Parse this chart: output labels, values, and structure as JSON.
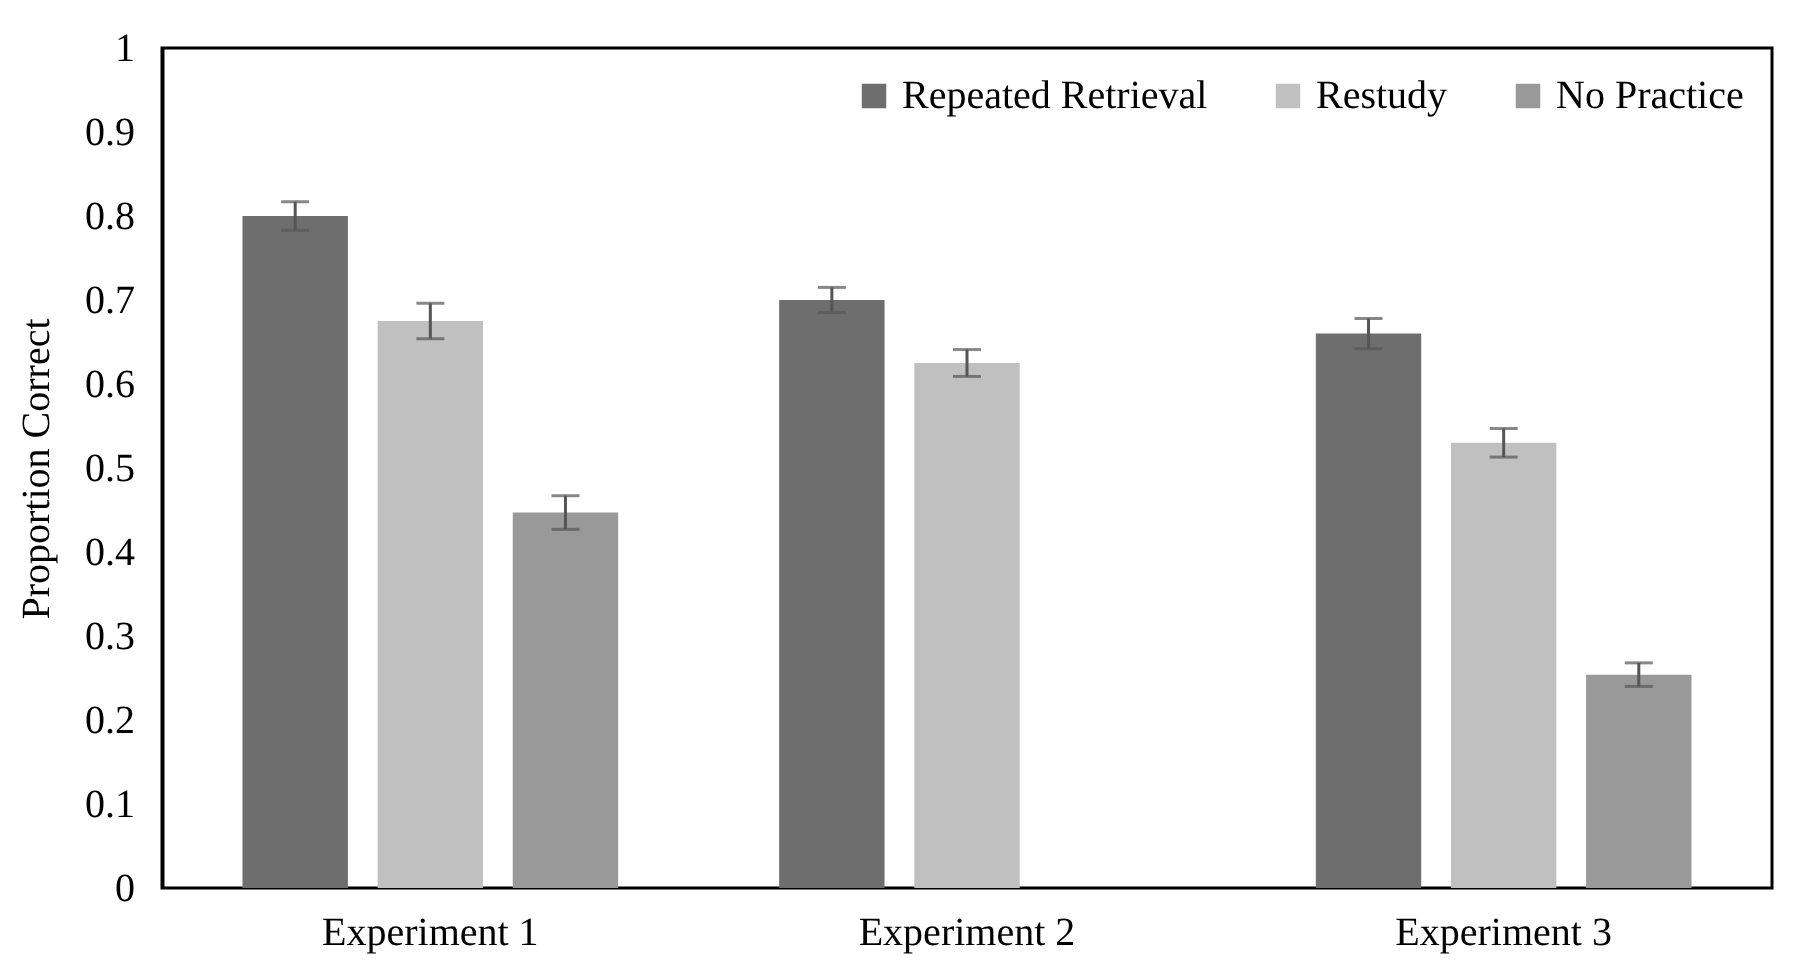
{
  "chart_data": {
    "type": "bar",
    "ylabel": "Proportion Correct",
    "categories": [
      "Experiment 1",
      "Experiment 2",
      "Experiment 3"
    ],
    "series": [
      {
        "name": "Repeated Retrieval",
        "color": "#6e6e6e",
        "values": [
          0.8,
          0.7,
          0.66
        ],
        "errors": [
          0.017,
          0.015,
          0.018
        ]
      },
      {
        "name": "Restudy",
        "color": "#c0c0c0",
        "values": [
          0.675,
          0.625,
          0.53
        ],
        "errors": [
          0.021,
          0.016,
          0.017
        ]
      },
      {
        "name": "No Practice",
        "color": "#999999",
        "values": [
          0.447,
          null,
          0.254
        ],
        "errors": [
          0.02,
          null,
          0.014
        ]
      }
    ],
    "ylim": [
      0,
      1
    ],
    "yticks": [
      0,
      0.1,
      0.2,
      0.3,
      0.4,
      0.5,
      0.6,
      0.7,
      0.8,
      0.9,
      1
    ],
    "grid": false,
    "legend": "top right"
  }
}
